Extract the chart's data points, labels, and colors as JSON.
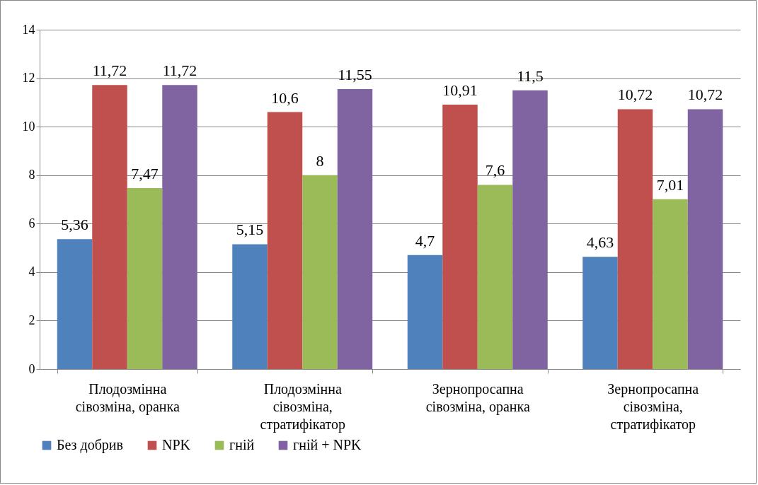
{
  "chart_data": {
    "type": "bar",
    "categories": [
      "Плодозмінна сівозміна, оранка",
      "Плодозмінна сівозміна, стратифікатор",
      "Зернопросапна сівозміна, оранка",
      "Зернопросапна сівозміна, стратифікатор"
    ],
    "series": [
      {
        "name": "Без добрив",
        "color": "#4f81bd",
        "values": [
          5.36,
          5.15,
          4.7,
          4.63
        ],
        "value_labels": [
          "5,36",
          "5,15",
          "4,7",
          "4,63"
        ]
      },
      {
        "name": "NPK",
        "color": "#c0504d",
        "values": [
          11.72,
          10.6,
          10.91,
          10.72
        ],
        "value_labels": [
          "11,72",
          "10,6",
          "10,91",
          "10,72"
        ]
      },
      {
        "name": "гній",
        "color": "#9bbb59",
        "values": [
          7.47,
          8,
          7.6,
          7.01
        ],
        "value_labels": [
          "7,47",
          "8",
          "7,6",
          "7,01"
        ]
      },
      {
        "name": "гній + NPK",
        "color": "#8064a2",
        "values": [
          11.72,
          11.55,
          11.5,
          10.72
        ],
        "value_labels": [
          "11,72",
          "11,55",
          "11,5",
          "10,72"
        ]
      }
    ],
    "ylim": [
      0,
      14
    ],
    "yticks": [
      0,
      2,
      4,
      6,
      8,
      10,
      12,
      14
    ],
    "grid": "y",
    "legend": "bottom"
  }
}
